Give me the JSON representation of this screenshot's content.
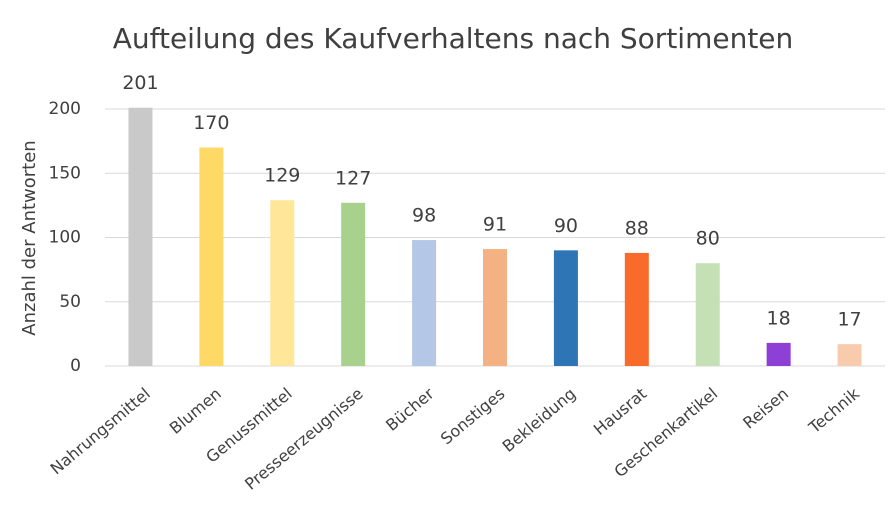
{
  "chart_data": {
    "type": "bar",
    "title": "Aufteilung des Kaufverhaltens nach Sortimenten",
    "y_label": "Anzahl der Antworten",
    "categories": [
      "Nahrungsmittel",
      "Blumen",
      "Genussmittel",
      "Presseerzeugnisse",
      "Bücher",
      "Sonstiges",
      "Bekleidung",
      "Hausrat",
      "Geschenkartikel",
      "Reisen",
      "Technik"
    ],
    "values": [
      201,
      170,
      129,
      127,
      98,
      91,
      90,
      88,
      80,
      18,
      17
    ],
    "colors": [
      "#c9c9c9",
      "#ffd966",
      "#ffe699",
      "#a9d18e",
      "#b4c7e7",
      "#f4b183",
      "#2e75b6",
      "#f86b2a",
      "#c5e0b4",
      "#8e3fd6",
      "#f8cbad"
    ],
    "ylim": [
      0,
      200
    ],
    "yticks": [
      0,
      50,
      100,
      150,
      200
    ],
    "grid": true
  }
}
